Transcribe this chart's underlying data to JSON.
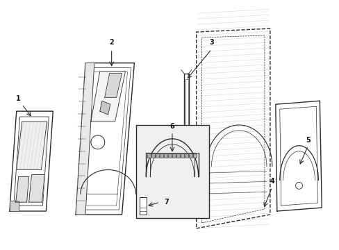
{
  "background_color": "#ffffff",
  "line_color": "#2a2a2a",
  "figsize": [
    4.89,
    3.6
  ],
  "dpi": 100,
  "label_fontsize": 7
}
